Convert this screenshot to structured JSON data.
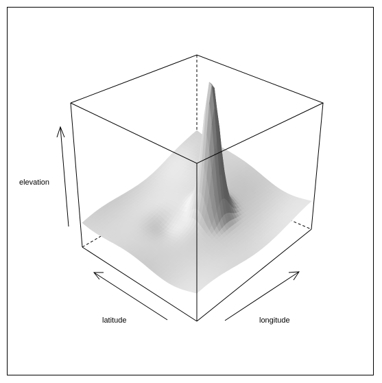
{
  "chart_data": {
    "type": "surface",
    "title": "",
    "xlabel": "longitude",
    "ylabel": "latitude",
    "zlabel": "elevation",
    "surface": "single dominant peak near the center of the grid rising from a gently undulating plain",
    "peak": {
      "x": 0.1,
      "y": -0.15,
      "relative_height": 1.0
    },
    "colors": {
      "shade_dark": "#5e5e5e",
      "shade_light": "#f2f2f2",
      "box": "#000000"
    }
  }
}
